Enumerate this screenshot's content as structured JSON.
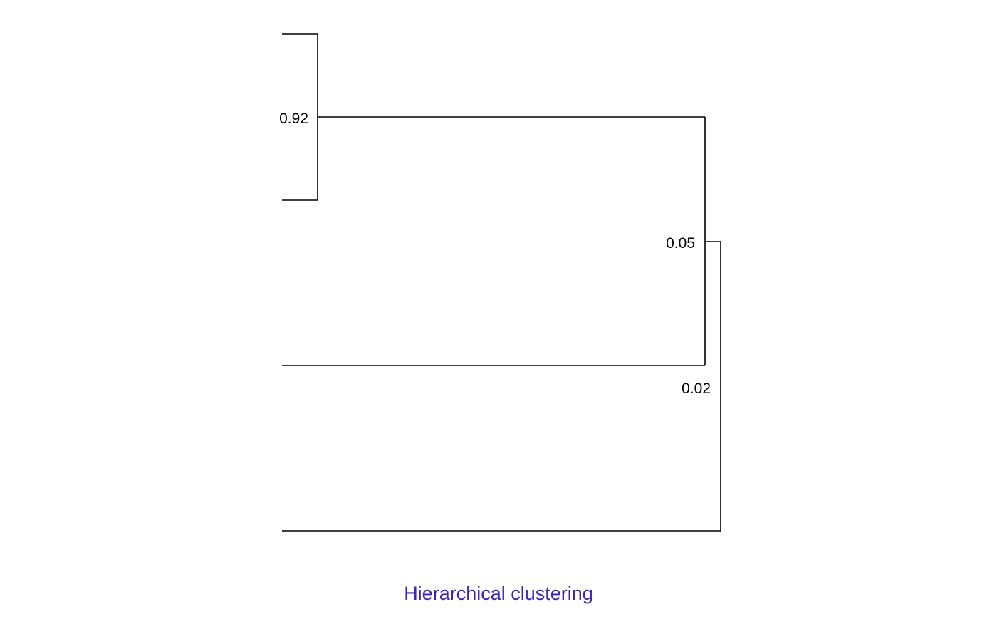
{
  "caption": {
    "text": "Hierarchical clustering",
    "color": "#3c24b4"
  },
  "dendrogram": {
    "leaves": [
      "leaf-1",
      "leaf-2",
      "leaf-3",
      "leaf-4"
    ],
    "merges": [
      {
        "id": "m1",
        "children": [
          "leaf-1",
          "leaf-2"
        ],
        "label": "0.92"
      },
      {
        "id": "m2",
        "children": [
          "m1",
          "leaf-3"
        ],
        "label": "0.05"
      },
      {
        "id": "m3",
        "children": [
          "m2",
          "leaf-4"
        ],
        "label": "0.02"
      }
    ],
    "line_color": "#000000"
  }
}
